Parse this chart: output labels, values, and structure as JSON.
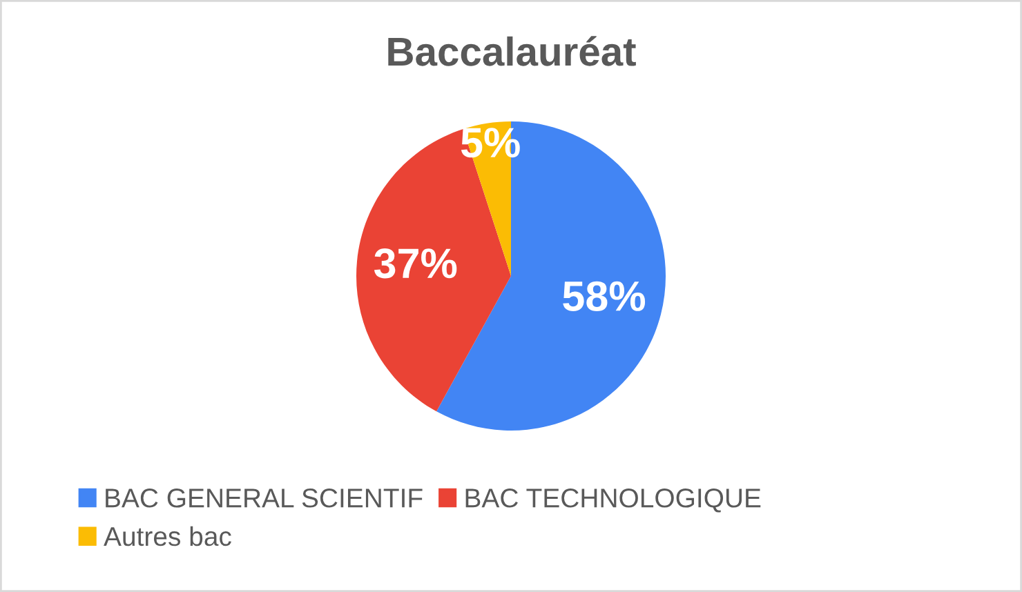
{
  "chart_data": {
    "type": "pie",
    "title": "Baccalauréat",
    "categories": [
      "BAC GENERAL SCIENTIF",
      "BAC TECHNOLOGIQUE",
      "Autres bac"
    ],
    "values": [
      58,
      37,
      5
    ],
    "colors": [
      "#4285f4",
      "#ea4335",
      "#fbbc04"
    ],
    "value_labels": [
      "58%",
      "37%",
      "5%"
    ],
    "legend": "bottom"
  }
}
